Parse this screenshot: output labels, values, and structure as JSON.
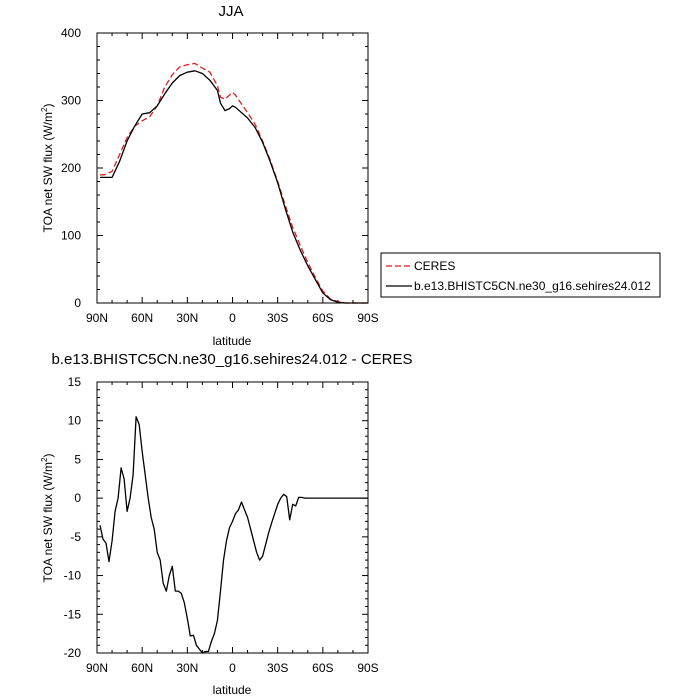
{
  "colors": {
    "ceres": "#e41a1c",
    "model": "#000000"
  },
  "chart_data": [
    {
      "type": "line",
      "title": "JJA",
      "xlabel": "latitude",
      "ylabel": "TOA net SW flux (W/m",
      "ylabel_sup": "2",
      "ylabel_end": ")",
      "xlim": [
        90,
        -90
      ],
      "ylim": [
        0,
        400
      ],
      "xticks": [
        90,
        60,
        30,
        0,
        -30,
        -60,
        -90
      ],
      "xtick_labels": [
        "90N",
        "60N",
        "30N",
        "0",
        "30S",
        "60S",
        "90S"
      ],
      "yticks": [
        0,
        100,
        200,
        300,
        400
      ],
      "ytick_labels": [
        "0",
        "100",
        "200",
        "300",
        "400"
      ],
      "legend": "bottom-right, outside plot",
      "series": [
        {
          "name": "CERES",
          "style": "dashed",
          "x": [
            88,
            85,
            80,
            75,
            70,
            65,
            60,
            55,
            50,
            45,
            40,
            35,
            30,
            25,
            20,
            15,
            10,
            8,
            5,
            2,
            0,
            -2,
            -5,
            -10,
            -15,
            -20,
            -25,
            -30,
            -35,
            -40,
            -45,
            -50,
            -55,
            -60,
            -65,
            -70,
            -75,
            -80,
            -85,
            -90
          ],
          "y": [
            190,
            190,
            195,
            220,
            245,
            262,
            270,
            276,
            292,
            320,
            338,
            350,
            353,
            355,
            348,
            342,
            322,
            305,
            302,
            308,
            312,
            308,
            298,
            282,
            265,
            240,
            212,
            180,
            145,
            112,
            85,
            60,
            38,
            18,
            6,
            2,
            0,
            0,
            0,
            0
          ]
        },
        {
          "name": "b.e13.BHISTC5CN.ne30_g16.sehires24.012",
          "style": "solid",
          "x": [
            88,
            85,
            80,
            75,
            70,
            65,
            60,
            55,
            50,
            45,
            40,
            35,
            30,
            25,
            20,
            15,
            10,
            8,
            5,
            2,
            0,
            -2,
            -5,
            -10,
            -15,
            -20,
            -25,
            -30,
            -35,
            -40,
            -45,
            -50,
            -55,
            -60,
            -65,
            -70,
            -75,
            -80,
            -85,
            -90
          ],
          "y": [
            186,
            186,
            186,
            210,
            240,
            262,
            280,
            282,
            292,
            310,
            326,
            337,
            342,
            344,
            340,
            330,
            315,
            296,
            285,
            288,
            292,
            290,
            284,
            274,
            260,
            238,
            210,
            178,
            140,
            105,
            78,
            55,
            35,
            15,
            5,
            1,
            0,
            0,
            0,
            0
          ]
        }
      ]
    },
    {
      "type": "line",
      "title": "b.e13.BHISTC5CN.ne30_g16.sehires24.012 - CERES",
      "xlabel": "latitude",
      "ylabel": "TOA net SW flux (W/m",
      "ylabel_sup": "2",
      "ylabel_end": ")",
      "xlim": [
        90,
        -90
      ],
      "ylim": [
        -20,
        15
      ],
      "xticks": [
        90,
        60,
        30,
        0,
        -30,
        -60,
        -90
      ],
      "xtick_labels": [
        "90N",
        "60N",
        "30N",
        "0",
        "30S",
        "60S",
        "90S"
      ],
      "yticks": [
        -20,
        -15,
        -10,
        -5,
        0,
        5,
        10,
        15
      ],
      "ytick_labels": [
        "-20",
        "-15",
        "-10",
        "-5",
        "0",
        "5",
        "10",
        "15"
      ],
      "series": [
        {
          "style": "solid",
          "x": [
            88,
            86,
            84,
            82,
            80,
            78,
            76,
            74,
            72,
            70,
            68,
            66,
            64,
            62,
            60,
            58,
            56,
            54,
            52,
            50,
            48,
            46,
            44,
            42,
            40,
            38,
            36,
            34,
            32,
            30,
            28,
            26,
            24,
            22,
            20,
            18,
            16,
            14,
            12,
            10,
            8,
            6,
            4,
            2,
            0,
            -2,
            -4,
            -6,
            -8,
            -10,
            -12,
            -14,
            -16,
            -18,
            -20,
            -22,
            -24,
            -26,
            -28,
            -30,
            -32,
            -34,
            -36,
            -38,
            -40,
            -42,
            -44,
            -46,
            -48,
            -50,
            -52,
            -54,
            -56,
            -58,
            -60,
            -62,
            -64,
            -66,
            -68,
            -70,
            -72,
            -74,
            -76,
            -78,
            -80,
            -82,
            -84,
            -86,
            -88,
            -90
          ],
          "y": [
            -3.5,
            -5.3,
            -5.8,
            -8.2,
            -5.5,
            -1.7,
            0.0,
            3.9,
            2.5,
            -1.7,
            0.0,
            3.0,
            10.5,
            9.5,
            6.0,
            3.0,
            0.0,
            -2.5,
            -4.0,
            -7.0,
            -8.0,
            -11.0,
            -12.0,
            -10.0,
            -8.8,
            -12.0,
            -12.0,
            -12.3,
            -13.5,
            -15.5,
            -17.8,
            -17.7,
            -19.0,
            -19.5,
            -20.0,
            -19.8,
            -19.8,
            -18.5,
            -17.5,
            -15.8,
            -12.0,
            -8.0,
            -5.5,
            -3.8,
            -3.0,
            -2.0,
            -1.5,
            -0.5,
            -1.5,
            -2.5,
            -4.0,
            -5.5,
            -7.0,
            -8.0,
            -7.5,
            -6.0,
            -4.5,
            -3.2,
            -2.0,
            -0.8,
            0.0,
            0.5,
            0.2,
            -2.8,
            -0.8,
            -1.0,
            0.1,
            0.1,
            0.0,
            0.0,
            0.0,
            0.0,
            0.0,
            0.0,
            0.0,
            0.0,
            0.0,
            0.0,
            0.0,
            0.0,
            0.0,
            0.0,
            0.0,
            0.0,
            0.0,
            0.0,
            0.0,
            0.0,
            0.0,
            0.0
          ]
        }
      ]
    }
  ]
}
